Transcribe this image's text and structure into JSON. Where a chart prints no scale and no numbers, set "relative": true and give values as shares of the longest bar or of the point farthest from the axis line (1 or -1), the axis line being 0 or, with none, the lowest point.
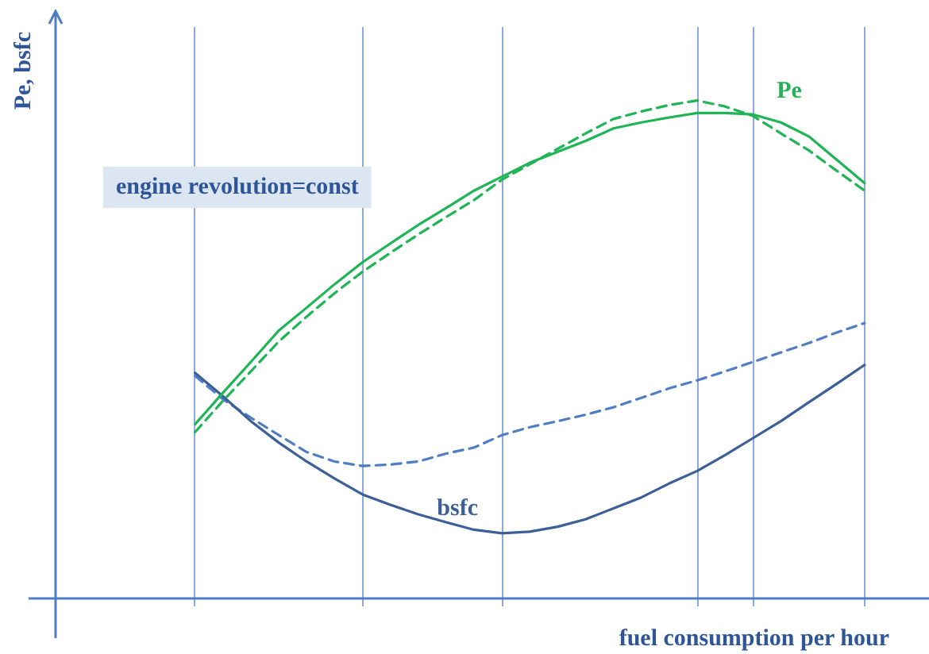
{
  "chart_data": {
    "type": "line",
    "relative": true,
    "xlabel": "fuel consumption per hour",
    "ylabel": "Pe, bsfc",
    "annotations": [
      "engine revolution=const"
    ],
    "categories": [
      null,
      null,
      null,
      null,
      null,
      null,
      null,
      null,
      null,
      null,
      null,
      null,
      null,
      null,
      null,
      null,
      null,
      null,
      null,
      null,
      null,
      null,
      null,
      null,
      null,
      null,
      null,
      null,
      null,
      null,
      null
    ],
    "legend": false,
    "marker": "none",
    "series": [
      {
        "name": "Pe",
        "color": "#1fb456",
        "line_style": "solid",
        "values": [
          null,
          null,
          null,
          null,
          null,
          0.35,
          0.413,
          0.475,
          0.538,
          0.584,
          0.631,
          0.675,
          0.713,
          0.75,
          0.784,
          0.819,
          0.847,
          0.875,
          0.897,
          0.919,
          0.944,
          0.956,
          0.966,
          0.975,
          0.975,
          0.972,
          0.956,
          0.928,
          0.881,
          0.834,
          null
        ]
      },
      {
        "color": "#1fb456",
        "line_style": "dashed",
        "values": [
          null,
          null,
          null,
          null,
          null,
          0.334,
          0.397,
          0.456,
          0.516,
          0.566,
          0.613,
          0.656,
          0.694,
          0.731,
          0.766,
          0.8,
          0.841,
          0.872,
          0.903,
          0.934,
          0.963,
          0.978,
          0.991,
          1,
          0.988,
          0.969,
          0.934,
          0.9,
          0.859,
          0.819,
          null
        ]
      },
      {
        "name": "bsfc",
        "color": "#3c5f98",
        "line_style": "solid",
        "values": [
          null,
          null,
          null,
          null,
          null,
          0.453,
          0.406,
          0.356,
          0.313,
          0.275,
          0.241,
          0.209,
          0.188,
          0.169,
          0.153,
          0.138,
          0.131,
          0.134,
          0.144,
          0.159,
          0.181,
          0.203,
          0.231,
          0.256,
          0.288,
          0.322,
          0.356,
          0.394,
          0.431,
          0.469,
          null
        ]
      },
      {
        "color": "#4f7ec4",
        "line_style": "dashed",
        "values": [
          null,
          null,
          null,
          null,
          null,
          0.447,
          0.4,
          0.363,
          0.328,
          0.294,
          0.275,
          0.266,
          0.269,
          0.275,
          0.291,
          0.303,
          0.328,
          0.344,
          0.356,
          0.369,
          0.384,
          0.403,
          0.422,
          0.438,
          0.456,
          0.475,
          0.494,
          0.513,
          0.534,
          0.553,
          null
        ]
      }
    ]
  }
}
